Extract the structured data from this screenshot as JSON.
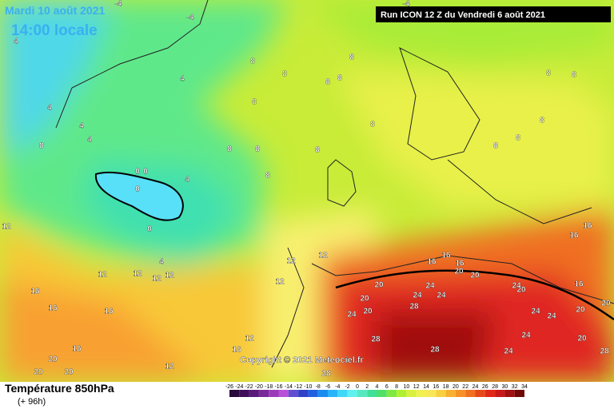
{
  "header": {
    "valid_date": "Mardi 10 août 2021",
    "local_time": "14:00 locale",
    "run": "Run ICON 12 Z du Vendredi 6 août 2021"
  },
  "copyright": "Copyright © 2021 Meteociel.fr",
  "footer": {
    "title": "Température 850hPa",
    "lead": "(+ 96h)"
  },
  "legend": {
    "ticks": [
      -26,
      -24,
      -22,
      -20,
      -18,
      -16,
      -14,
      -12,
      -10,
      -8,
      -6,
      -4,
      -2,
      0,
      2,
      4,
      6,
      8,
      10,
      12,
      14,
      16,
      18,
      20,
      22,
      24,
      26,
      28,
      30,
      32,
      34
    ],
    "colors": [
      "#2a0a3a",
      "#3e0e5a",
      "#5a1a7a",
      "#7a2a9a",
      "#9a3cba",
      "#b850d8",
      "#6050d0",
      "#3040c8",
      "#2060e0",
      "#1a8cf0",
      "#28b4f8",
      "#40d8f8",
      "#60f0f0",
      "#58e8c0",
      "#40e098",
      "#50e068",
      "#80e840",
      "#b0f030",
      "#d8f040",
      "#f0f050",
      "#f8e858",
      "#f8d040",
      "#f8b030",
      "#f89028",
      "#f07020",
      "#e84818",
      "#e02818",
      "#c81818",
      "#a01010",
      "#700808"
    ]
  },
  "map_labels": [
    "-4",
    "-4",
    "-4",
    "4",
    "4",
    "4",
    "4",
    "4",
    "4",
    "4",
    "8",
    "8",
    "8",
    "8",
    "8",
    "8",
    "8",
    "8",
    "8",
    "8",
    "8",
    "8",
    "8",
    "8",
    "8",
    "8",
    "8",
    "0",
    "0",
    "0",
    "0",
    "12",
    "12",
    "12",
    "12",
    "12",
    "12",
    "12",
    "12",
    "12",
    "12",
    "16",
    "16",
    "16",
    "16",
    "16",
    "16",
    "16",
    "16",
    "16",
    "16",
    "16",
    "20",
    "20",
    "20",
    "20",
    "20",
    "20",
    "20",
    "20",
    "20",
    "20",
    "20",
    "20",
    "24",
    "24",
    "24",
    "24",
    "24",
    "24",
    "24",
    "24",
    "24",
    "28",
    "28",
    "28",
    "28",
    "28"
  ]
}
